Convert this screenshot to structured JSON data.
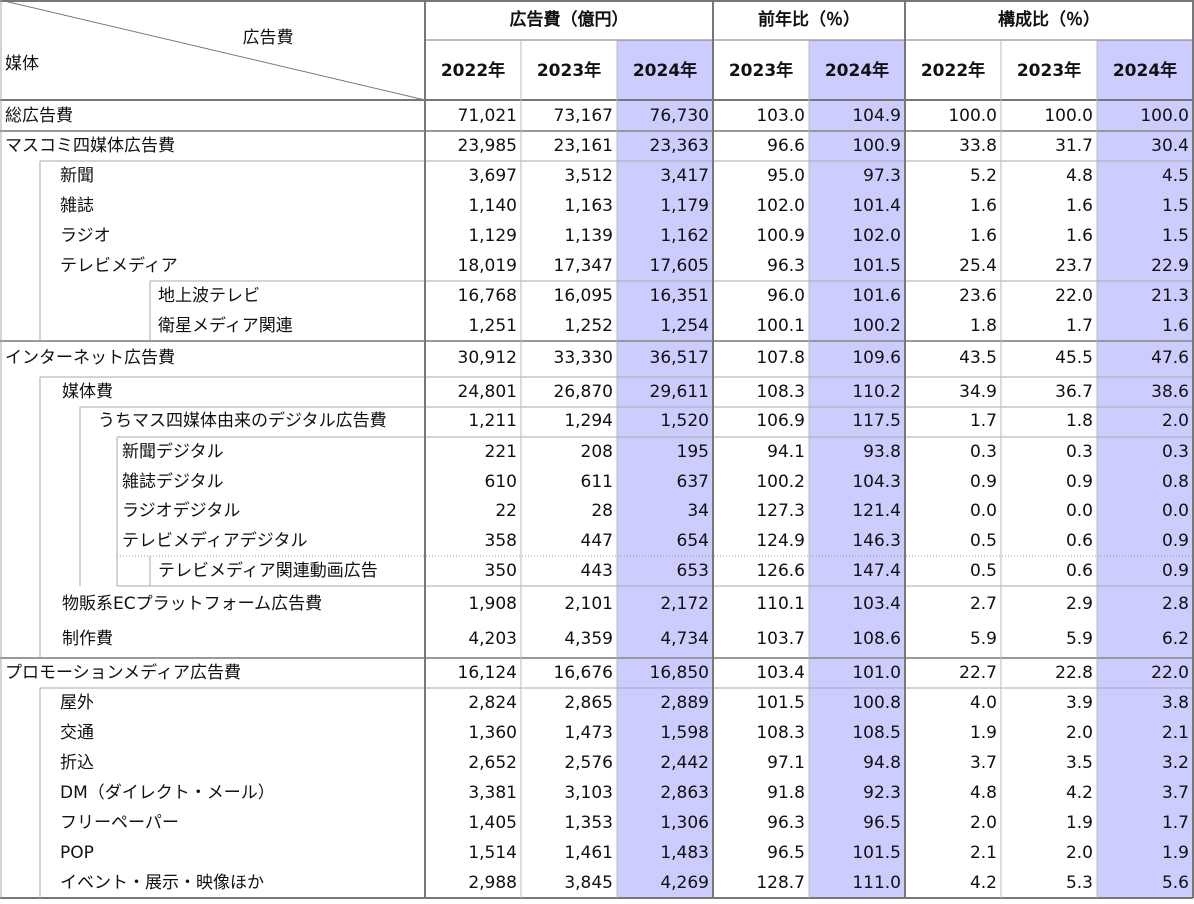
{
  "header": {
    "corner_top": "広告費",
    "corner_bottom": "媒体",
    "groups": [
      {
        "label": "広告費（億円）",
        "years": [
          "2022年",
          "2023年",
          "2024年"
        ]
      },
      {
        "label": "前年比（％）",
        "years": [
          "2023年",
          "2024年"
        ]
      },
      {
        "label": "構成比（％）",
        "years": [
          "2022年",
          "2023年",
          "2024年"
        ]
      }
    ]
  },
  "rows": [
    {
      "label": "総広告費",
      "values": [
        "71,021",
        "73,167",
        "76,730",
        "103.0",
        "104.9",
        "100.0",
        "100.0",
        "100.0"
      ]
    },
    {
      "label": "マスコミ四媒体広告費",
      "values": [
        "23,985",
        "23,161",
        "23,363",
        "96.6",
        "100.9",
        "33.8",
        "31.7",
        "30.4"
      ]
    },
    {
      "label": "新聞",
      "values": [
        "3,697",
        "3,512",
        "3,417",
        "95.0",
        "97.3",
        "5.2",
        "4.8",
        "4.5"
      ]
    },
    {
      "label": "雑誌",
      "values": [
        "1,140",
        "1,163",
        "1,179",
        "102.0",
        "101.4",
        "1.6",
        "1.6",
        "1.5"
      ]
    },
    {
      "label": "ラジオ",
      "values": [
        "1,129",
        "1,139",
        "1,162",
        "100.9",
        "102.0",
        "1.6",
        "1.6",
        "1.5"
      ]
    },
    {
      "label": "テレビメディア",
      "values": [
        "18,019",
        "17,347",
        "17,605",
        "96.3",
        "101.5",
        "25.4",
        "23.7",
        "22.9"
      ]
    },
    {
      "label": "地上波テレビ",
      "values": [
        "16,768",
        "16,095",
        "16,351",
        "96.0",
        "101.6",
        "23.6",
        "22.0",
        "21.3"
      ]
    },
    {
      "label": "衛星メディア関連",
      "values": [
        "1,251",
        "1,252",
        "1,254",
        "100.1",
        "100.2",
        "1.8",
        "1.7",
        "1.6"
      ]
    },
    {
      "label": "インターネット広告費",
      "values": [
        "30,912",
        "33,330",
        "36,517",
        "107.8",
        "109.6",
        "43.5",
        "45.5",
        "47.6"
      ]
    },
    {
      "label": "媒体費",
      "values": [
        "24,801",
        "26,870",
        "29,611",
        "108.3",
        "110.2",
        "34.9",
        "36.7",
        "38.6"
      ]
    },
    {
      "label": "うちマス四媒体由来のデジタル広告費",
      "values": [
        "1,211",
        "1,294",
        "1,520",
        "106.9",
        "117.5",
        "1.7",
        "1.8",
        "2.0"
      ]
    },
    {
      "label": "新聞デジタル",
      "values": [
        "221",
        "208",
        "195",
        "94.1",
        "93.8",
        "0.3",
        "0.3",
        "0.3"
      ]
    },
    {
      "label": "雑誌デジタル",
      "values": [
        "610",
        "611",
        "637",
        "100.2",
        "104.3",
        "0.9",
        "0.9",
        "0.8"
      ]
    },
    {
      "label": "ラジオデジタル",
      "values": [
        "22",
        "28",
        "34",
        "127.3",
        "121.4",
        "0.0",
        "0.0",
        "0.0"
      ]
    },
    {
      "label": "テレビメディアデジタル",
      "values": [
        "358",
        "447",
        "654",
        "124.9",
        "146.3",
        "0.5",
        "0.6",
        "0.9"
      ]
    },
    {
      "label": "テレビメディア関連動画広告",
      "values": [
        "350",
        "443",
        "653",
        "126.6",
        "147.4",
        "0.5",
        "0.6",
        "0.9"
      ]
    },
    {
      "label": "物販系ECプラットフォーム広告費",
      "values": [
        "1,908",
        "2,101",
        "2,172",
        "110.1",
        "103.4",
        "2.7",
        "2.9",
        "2.8"
      ]
    },
    {
      "label": "制作費",
      "values": [
        "4,203",
        "4,359",
        "4,734",
        "103.7",
        "108.6",
        "5.9",
        "5.9",
        "6.2"
      ]
    },
    {
      "label": "プロモーションメディア広告費",
      "values": [
        "16,124",
        "16,676",
        "16,850",
        "103.4",
        "101.0",
        "22.7",
        "22.8",
        "22.0"
      ]
    },
    {
      "label": "屋外",
      "values": [
        "2,824",
        "2,865",
        "2,889",
        "101.5",
        "100.8",
        "4.0",
        "3.9",
        "3.8"
      ]
    },
    {
      "label": "交通",
      "values": [
        "1,360",
        "1,473",
        "1,598",
        "108.3",
        "108.5",
        "1.9",
        "2.0",
        "2.1"
      ]
    },
    {
      "label": "折込",
      "values": [
        "2,652",
        "2,576",
        "2,442",
        "97.1",
        "94.8",
        "3.7",
        "3.5",
        "3.2"
      ]
    },
    {
      "label": "DM（ダイレクト・メール）",
      "values": [
        "3,381",
        "3,103",
        "2,863",
        "91.8",
        "92.3",
        "4.8",
        "4.2",
        "3.7"
      ]
    },
    {
      "label": "フリーペーパー",
      "values": [
        "1,405",
        "1,353",
        "1,306",
        "96.3",
        "96.5",
        "2.0",
        "1.9",
        "1.7"
      ]
    },
    {
      "label": "POP",
      "values": [
        "1,514",
        "1,461",
        "1,483",
        "96.5",
        "101.5",
        "2.1",
        "2.0",
        "1.9"
      ]
    },
    {
      "label": "イベント・展示・映像ほか",
      "values": [
        "2,988",
        "3,845",
        "4,269",
        "128.7",
        "111.0",
        "4.2",
        "5.3",
        "5.6"
      ]
    }
  ]
}
